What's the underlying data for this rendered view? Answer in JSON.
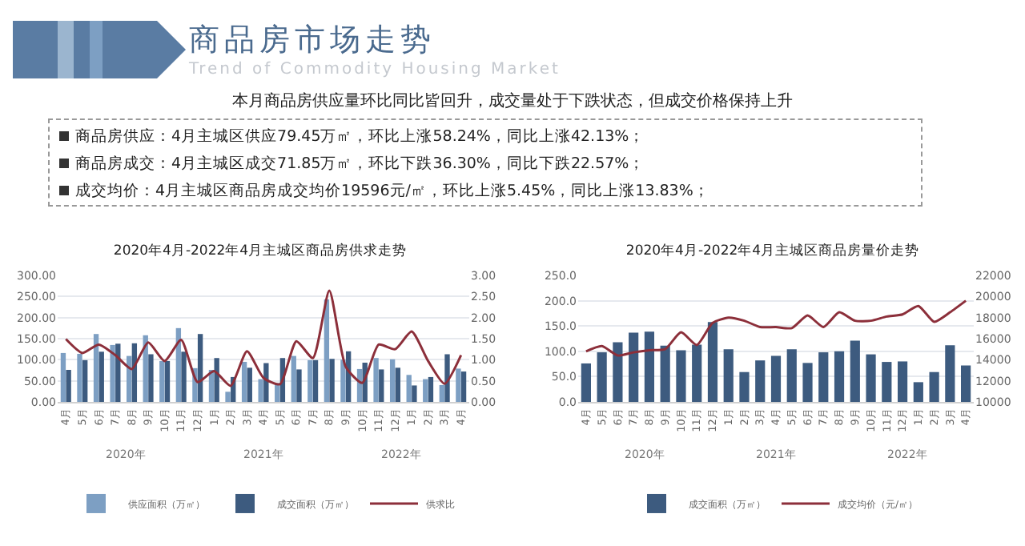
{
  "chart_data": [
    {
      "type": "other",
      "title": "商品房市场走势",
      "subtitle": "Trend of Commodity Housing Market",
      "annotations": [
        "本月商品房供应量环比同比皆回升，成交量处于下跌状态，但成交价格保持上升",
        "商品房供应：4月主城区供应79.45万㎡，环比上涨58.24%，同比上涨42.13%；",
        "商品房成交：4月主城区成交71.85万㎡，环比下跌36.30%，同比下跌22.57%；",
        "成交均价：4月主城区商品房成交均价19596元/㎡，环比上涨5.45%，同比上涨13.83%；"
      ]
    },
    {
      "type": "bar",
      "title": "2020年4月-2022年4月主城区商品房供求走势",
      "categories": [
        "4月",
        "5月",
        "6月",
        "7月",
        "8月",
        "9月",
        "10月",
        "11月",
        "12月",
        "1月",
        "2月",
        "3月",
        "4月",
        "5月",
        "6月",
        "7月",
        "8月",
        "9月",
        "10月",
        "11月",
        "12月",
        "1月",
        "2月",
        "3月",
        "4月"
      ],
      "series": [
        {
          "name": "供应面积（万㎡）",
          "color": "#7d9fc3",
          "values": [
            116,
            114,
            161,
            135,
            109,
            158,
            97,
            175,
            80,
            76,
            24,
            95,
            54,
            45,
            109,
            99,
            243,
            100,
            78,
            104,
            101,
            64,
            54,
            40,
            79
          ]
        },
        {
          "name": "成交面积（万㎡）",
          "color": "#3d5b7f",
          "values": [
            76,
            99,
            119,
            138,
            139,
            113,
            97,
            119,
            161,
            104,
            59,
            81,
            92,
            104,
            77,
            99,
            102,
            120,
            93,
            77,
            81,
            39,
            59,
            113,
            72
          ]
        },
        {
          "name": "供求比",
          "type": "line",
          "axis": "y2",
          "color": "#8c2f3a",
          "values": [
            1.49,
            1.16,
            1.36,
            1.11,
            0.78,
            1.41,
            0.97,
            1.47,
            0.47,
            0.73,
            0.38,
            1.2,
            0.57,
            0.42,
            1.44,
            1.04,
            2.64,
            0.83,
            0.45,
            1.36,
            1.25,
            1.67,
            0.97,
            0.43,
            1.11
          ]
        }
      ],
      "ylim": [
        0,
        300
      ],
      "yticks": [
        {
          "value": 0,
          "label": "0.00"
        },
        {
          "value": 50,
          "label": "50.00"
        },
        {
          "value": 100,
          "label": "100.00"
        },
        {
          "value": 150,
          "label": "150.00"
        },
        {
          "value": 200,
          "label": "200.00"
        },
        {
          "value": 250,
          "label": "250.00"
        },
        {
          "value": 300,
          "label": "300.00"
        }
      ],
      "y2lim": [
        0,
        3
      ],
      "y2ticks": [
        {
          "value": 0,
          "label": "0.00"
        },
        {
          "value": 0.5,
          "label": "0.50"
        },
        {
          "value": 1,
          "label": "1.00"
        },
        {
          "value": 1.5,
          "label": "1.50"
        },
        {
          "value": 2,
          "label": "2.00"
        },
        {
          "value": 2.5,
          "label": "2.50"
        },
        {
          "value": 3,
          "label": "3.00"
        }
      ],
      "annotations": [
        "2020年",
        "2021年",
        "2022年"
      ],
      "grid": "y",
      "legend": "bottom"
    },
    {
      "type": "bar",
      "title": "2020年4月-2022年4月主城区商品房量价走势",
      "categories": [
        "4月",
        "5月",
        "6月",
        "7月",
        "8月",
        "9月",
        "10月",
        "11月",
        "12月",
        "1月",
        "2月",
        "3月",
        "4月",
        "5月",
        "6月",
        "7月",
        "8月",
        "9月",
        "10月",
        "11月",
        "12月",
        "1月",
        "2月",
        "3月",
        "4月"
      ],
      "series": [
        {
          "name": "成交面积（万㎡）",
          "color": "#3d5b7f",
          "values": [
            76,
            98,
            118,
            137,
            139,
            111,
            102,
            113,
            158,
            104,
            59,
            82,
            91,
            104,
            77,
            98,
            100,
            121,
            94,
            79,
            80,
            39,
            59,
            112,
            72
          ]
        },
        {
          "name": "成交均价（元/㎡）",
          "type": "line",
          "axis": "y2",
          "color": "#8c2f3a",
          "values": [
            14800,
            15300,
            14400,
            14700,
            14900,
            15000,
            16600,
            15400,
            17500,
            18000,
            17700,
            17100,
            17100,
            17000,
            18200,
            17100,
            18500,
            17700,
            17700,
            18100,
            18300,
            19100,
            17600,
            18500,
            19600
          ]
        }
      ],
      "ylim": [
        0,
        250
      ],
      "yticks": [
        {
          "value": 0,
          "label": "0.0"
        },
        {
          "value": 50,
          "label": "50.0"
        },
        {
          "value": 100,
          "label": "100.0"
        },
        {
          "value": 150,
          "label": "150.0"
        },
        {
          "value": 200,
          "label": "200.0"
        },
        {
          "value": 250,
          "label": "250.0"
        }
      ],
      "y2lim": [
        10000,
        22000
      ],
      "y2ticks": [
        10000,
        12000,
        14000,
        16000,
        18000,
        20000,
        22000
      ],
      "annotations": [
        "2020年",
        "2021年",
        "2022年"
      ],
      "grid": "y",
      "legend": "bottom"
    }
  ]
}
